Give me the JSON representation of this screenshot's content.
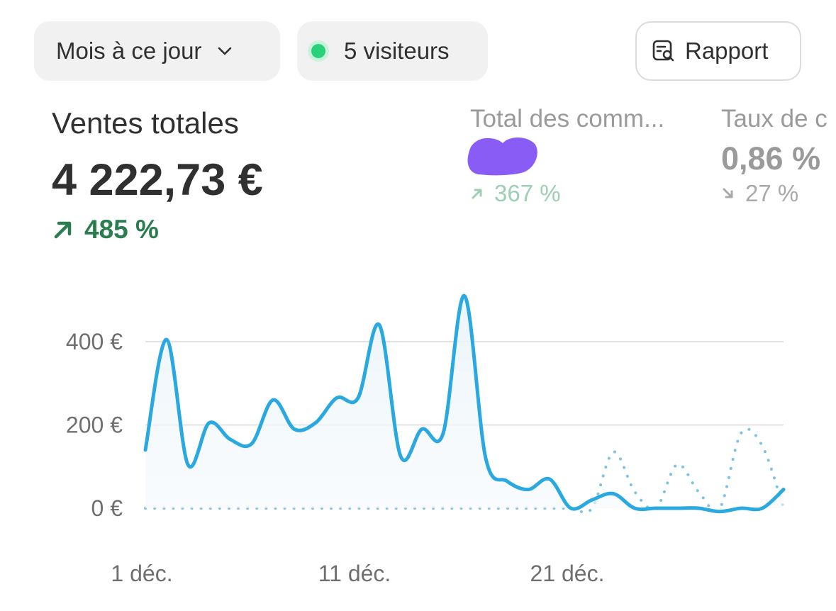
{
  "toolbar": {
    "period_label": "Mois à ce jour",
    "visitors_label": "5 visiteurs",
    "report_label": "Rapport",
    "live_color": "#29d27a"
  },
  "metrics": [
    {
      "title": "Ventes totales",
      "value": "4 222,73 €",
      "change": "485 %",
      "direction": "up",
      "color": "#2a7d4f"
    },
    {
      "title": "Total des comm...",
      "value": "",
      "value_redacted": true,
      "change": "367 %",
      "direction": "up",
      "color": "#9ccfb3"
    },
    {
      "title": "Taux de c",
      "value": "0,86 %",
      "change": "27 %",
      "direction": "down",
      "color": "#a9a9a9"
    }
  ],
  "chart_data": {
    "type": "line",
    "x": [
      "1 déc.",
      "2 déc.",
      "3 déc.",
      "4 déc.",
      "5 déc.",
      "6 déc.",
      "7 déc.",
      "8 déc.",
      "9 déc.",
      "10 déc.",
      "11 déc.",
      "12 déc.",
      "13 déc.",
      "14 déc.",
      "15 déc.",
      "16 déc.",
      "17 déc.",
      "18 déc.",
      "19 déc.",
      "20 déc.",
      "21 déc.",
      "22 déc.",
      "23 déc.",
      "24 déc.",
      "25 déc.",
      "26 déc.",
      "27 déc.",
      "28 déc.",
      "29 déc.",
      "30 déc.",
      "31 déc."
    ],
    "xticks": [
      "1 déc.",
      "11 déc.",
      "21 déc."
    ],
    "yticks": [
      "0 €",
      "200 €",
      "400 €"
    ],
    "ylim": [
      0,
      520
    ],
    "grid": true,
    "series": [
      {
        "name": "",
        "style": "solid",
        "color": "#2aa8e0",
        "values": [
          140,
          405,
          105,
          205,
          165,
          155,
          260,
          190,
          205,
          265,
          265,
          440,
          125,
          190,
          180,
          510,
          120,
          65,
          45,
          70,
          0,
          20,
          35,
          0,
          0,
          0,
          0,
          -8,
          0,
          0,
          45
        ]
      },
      {
        "name": "",
        "style": "dotted",
        "color": "#7cc2e2",
        "values": [
          0,
          0,
          0,
          0,
          0,
          0,
          0,
          0,
          0,
          0,
          0,
          0,
          0,
          0,
          0,
          0,
          0,
          0,
          0,
          0,
          0,
          0,
          135,
          40,
          0,
          105,
          40,
          0,
          180,
          150,
          0
        ]
      }
    ]
  }
}
